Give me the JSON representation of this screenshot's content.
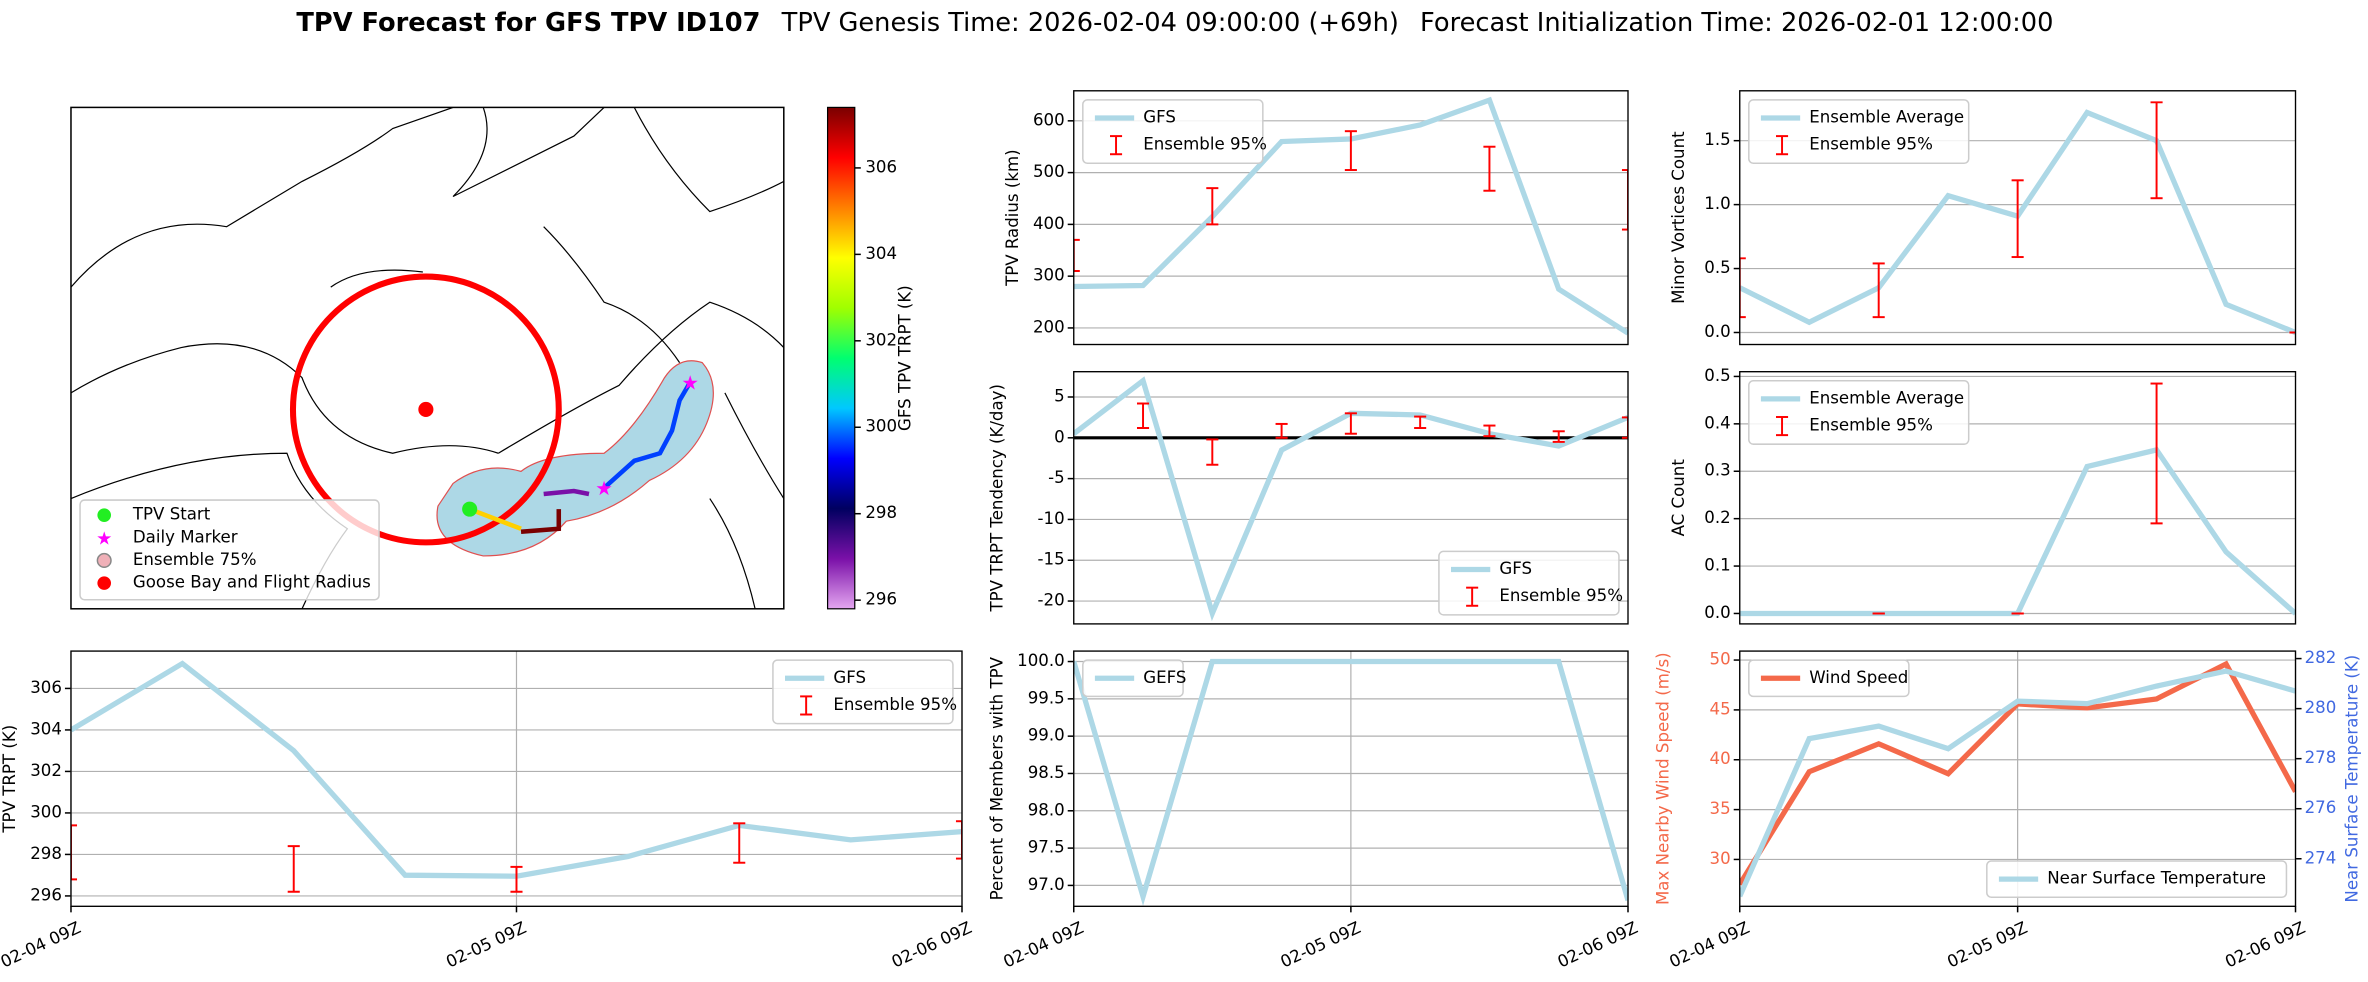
{
  "title": {
    "main": "TPV Forecast for GFS TPV ID107",
    "genesis": "TPV Genesis Time: 2026-02-04 09:00:00 (+69h)",
    "init": "Forecast Initialization Time: 2026-02-01 12:00:00"
  },
  "map": {
    "legend": [
      "TPV Start",
      "Daily Marker",
      "Ensemble 75%",
      "Goose Bay and Flight Radius"
    ],
    "colorbar": {
      "label": "GFS TPV TRPT (K)",
      "lim": [
        295.8,
        307.4
      ],
      "ticks": [
        296,
        298,
        300,
        302,
        304,
        306
      ],
      "colors": [
        "#e4a6f0",
        "#7a10a8",
        "#000060",
        "#0000ff",
        "#00c8ff",
        "#00ff70",
        "#a0ff00",
        "#ffff00",
        "#ff8000",
        "#ff0000",
        "#7a0000"
      ]
    }
  },
  "chart_data": [
    {
      "type": "line",
      "ylabel": "TPV Radius (km)",
      "categories": [
        null,
        null,
        null,
        null,
        null,
        null,
        null,
        null,
        null
      ],
      "ylim": [
        168,
        658
      ],
      "yticks": [
        200,
        300,
        400,
        500,
        600
      ],
      "grid": true,
      "legend": "upper left",
      "series": [
        {
          "name": "GFS",
          "color": "#add8e6",
          "values": [
            280,
            282,
            415,
            560,
            565,
            592,
            640,
            275,
            190
          ]
        },
        {
          "name": "Ensemble 95%",
          "color": "#ff0000",
          "type": "errorbar",
          "low": [
            310,
            null,
            400,
            null,
            505,
            null,
            465,
            null,
            390
          ],
          "high": [
            370,
            null,
            470,
            null,
            580,
            null,
            550,
            null,
            505
          ]
        }
      ]
    },
    {
      "type": "line",
      "ylabel": "Minor Vortices Count",
      "categories": [
        null,
        null,
        null,
        null,
        null,
        null,
        null,
        null,
        null
      ],
      "ylim": [
        -0.094,
        1.89
      ],
      "yticks": [
        {
          "value": 0,
          "label": "0.0"
        },
        {
          "value": 0.5,
          "label": "0.5"
        },
        {
          "value": 1,
          "label": "1.0"
        },
        {
          "value": 1.5,
          "label": "1.5"
        }
      ],
      "grid": true,
      "legend": "upper left",
      "series": [
        {
          "name": "Ensemble Average",
          "color": "#add8e6",
          "values": [
            0.35,
            0.08,
            0.35,
            1.07,
            0.91,
            1.72,
            1.5,
            0.22,
            0.0
          ]
        },
        {
          "name": "Ensemble 95%",
          "color": "#ff0000",
          "type": "errorbar",
          "low": [
            0.12,
            null,
            0.12,
            null,
            0.59,
            null,
            1.05,
            null,
            0
          ],
          "high": [
            0.58,
            null,
            0.54,
            null,
            1.19,
            null,
            1.8,
            null,
            0
          ]
        }
      ]
    },
    {
      "type": "line",
      "ylabel": "TPV TRPT Tendency (K/day)",
      "categories": [
        null,
        null,
        null,
        null,
        null,
        null,
        null,
        null,
        null
      ],
      "ylim": [
        -22.8,
        8.1
      ],
      "yticks": [
        -20,
        -15,
        -10,
        -5,
        0,
        5
      ],
      "grid": true,
      "legend": "lower right",
      "hline": 0,
      "series": [
        {
          "name": "GFS",
          "color": "#add8e6",
          "values": [
            0.5,
            7,
            -21.5,
            -1.5,
            3,
            2.8,
            0.5,
            -1,
            2.5
          ]
        },
        {
          "name": "Ensemble 95%",
          "color": "#ff0000",
          "type": "errorbar",
          "low": [
            null,
            1.2,
            -3.3,
            0,
            0.5,
            1.2,
            0.2,
            -0.5,
            0
          ],
          "high": [
            null,
            4.2,
            -0.2,
            1.7,
            3,
            2.6,
            1.5,
            0.8,
            2.5
          ]
        }
      ]
    },
    {
      "type": "line",
      "ylabel": "AC Count",
      "categories": [
        null,
        null,
        null,
        null,
        null,
        null,
        null,
        null,
        null
      ],
      "ylim": [
        -0.022,
        0.51
      ],
      "yticks": [
        {
          "value": 0,
          "label": "0.0"
        },
        {
          "value": 0.1,
          "label": "0.1"
        },
        {
          "value": 0.2,
          "label": "0.2"
        },
        {
          "value": 0.3,
          "label": "0.3"
        },
        {
          "value": 0.4,
          "label": "0.4"
        },
        {
          "value": 0.5,
          "label": "0.5"
        }
      ],
      "grid": true,
      "legend": "upper left",
      "series": [
        {
          "name": "Ensemble Average",
          "color": "#add8e6",
          "values": [
            0,
            0,
            0,
            0,
            0,
            0.31,
            0.345,
            0.13,
            0.0
          ]
        },
        {
          "name": "Ensemble 95%",
          "color": "#ff0000",
          "type": "errorbar",
          "low": [
            null,
            null,
            0,
            null,
            0,
            null,
            0.19,
            null,
            null
          ],
          "high": [
            null,
            null,
            0,
            null,
            0,
            null,
            0.485,
            null,
            null
          ]
        }
      ]
    },
    {
      "type": "line",
      "ylabel": "TPV TRPT (K)",
      "categories": [
        "02-04 09Z",
        null,
        null,
        null,
        "02-05 09Z",
        null,
        null,
        null,
        "02-06 09Z"
      ],
      "ylim": [
        295.5,
        307.8
      ],
      "yticks": [
        296,
        298,
        300,
        302,
        304,
        306
      ],
      "grid": true,
      "legend": "upper right",
      "series": [
        {
          "name": "GFS",
          "color": "#add8e6",
          "values": [
            304,
            307.2,
            303,
            297,
            296.95,
            297.9,
            299.4,
            298.7,
            299.1
          ]
        },
        {
          "name": "Ensemble 95%",
          "color": "#ff0000",
          "type": "errorbar",
          "low": [
            296.8,
            null,
            296.2,
            null,
            296.2,
            null,
            297.6,
            null,
            297.8
          ],
          "high": [
            299.4,
            null,
            298.4,
            null,
            297.4,
            null,
            299.5,
            null,
            299.6
          ]
        }
      ]
    },
    {
      "type": "line",
      "ylabel": "Percent of Members with TPV",
      "categories": [
        "02-04 09Z",
        null,
        null,
        null,
        "02-05 09Z",
        null,
        null,
        null,
        "02-06 09Z"
      ],
      "ylim": [
        96.72,
        100.14
      ],
      "yticks": [
        {
          "value": 97,
          "label": "97.0"
        },
        {
          "value": 97.5,
          "label": "97.5"
        },
        {
          "value": 98,
          "label": "98.0"
        },
        {
          "value": 98.5,
          "label": "98.5"
        },
        {
          "value": 99,
          "label": "99.0"
        },
        {
          "value": 99.5,
          "label": "99.5"
        },
        {
          "value": 100,
          "label": "100.0"
        }
      ],
      "grid": true,
      "legend": "upper left",
      "series": [
        {
          "name": "GEFS",
          "color": "#add8e6",
          "values": [
            100,
            96.85,
            100,
            100,
            100,
            100,
            100,
            100,
            96.8
          ]
        }
      ]
    },
    {
      "type": "line",
      "ylabel": "Max Nearby Wind Speed (m/s)",
      "ylabel_color": "#f4694a",
      "y2label": "Near Surface Temperature (K)",
      "y2label_color": "#4169e1",
      "categories": [
        "02-04 09Z",
        null,
        null,
        null,
        "02-05 09Z",
        null,
        null,
        null,
        "02-06 09Z"
      ],
      "ylim": [
        25.3,
        50.9
      ],
      "yticks": [
        30,
        35,
        40,
        45,
        50
      ],
      "y2lim": [
        272.1,
        282.3
      ],
      "y2ticks": [
        274,
        276,
        278,
        280,
        282
      ],
      "grid": true,
      "series": [
        {
          "name": "Wind Speed",
          "color": "#f4694a",
          "legend": "upper left",
          "values": [
            27.5,
            38.8,
            41.6,
            38.6,
            45.6,
            45.2,
            46.1,
            49.6,
            36.8
          ]
        },
        {
          "name": "Near Surface Temperature",
          "color": "#add8e6",
          "axis": "y2",
          "legend": "lower right",
          "values": [
            272.5,
            278.8,
            279.3,
            278.4,
            280.3,
            280.2,
            280.9,
            281.5,
            280.7
          ]
        }
      ]
    }
  ]
}
